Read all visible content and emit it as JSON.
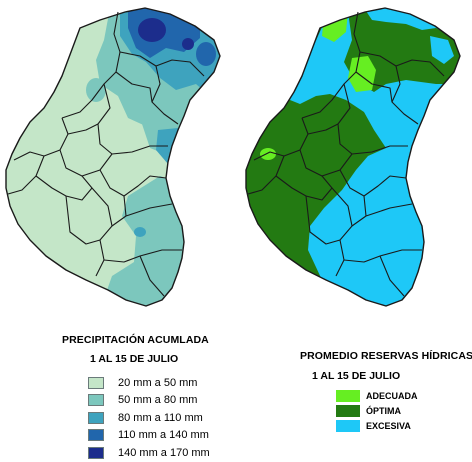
{
  "left_map": {
    "title": "PRECIPITACIÓN ACUMLADA",
    "period": "1 AL 15 DE JULIO",
    "legend": [
      {
        "label": "20 mm a 50 mm",
        "color": "#c4e6c8"
      },
      {
        "label": "50 mm a 80 mm",
        "color": "#7cc7bd"
      },
      {
        "label": "80 mm a 110 mm",
        "color": "#3ea3be"
      },
      {
        "label": "110 mm a 140 mm",
        "color": "#2166ac"
      },
      {
        "label": "140 mm a 170 mm",
        "color": "#1c2d8c"
      }
    ]
  },
  "right_map": {
    "title": "PROMEDIO RESERVAS HÍDRICAS",
    "period": "1 AL 15 DE JULIO",
    "legend": [
      {
        "label": "ADECUADA",
        "color": "#66ee22"
      },
      {
        "label": "ÓPTIMA",
        "color": "#237a12"
      },
      {
        "label": "EXCESIVA",
        "color": "#1ec8f7"
      }
    ]
  }
}
